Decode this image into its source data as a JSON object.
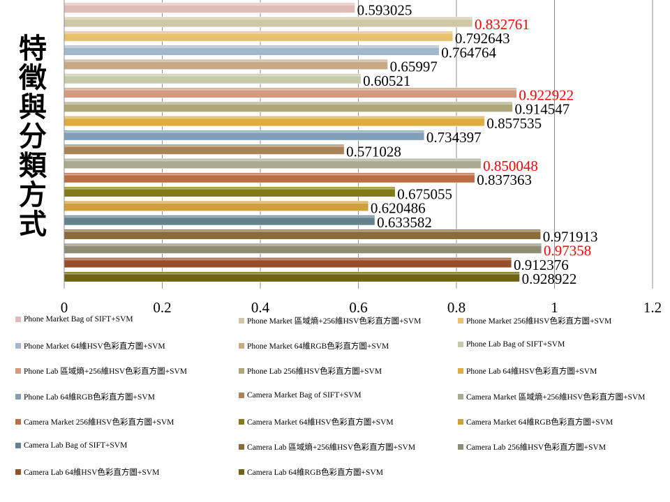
{
  "chart_data": {
    "type": "bar",
    "orientation": "horizontal",
    "ylabel": "特徵與分類方式",
    "xlim": [
      0,
      1.2
    ],
    "x_ticks": [
      "0",
      "0.2",
      "0.4",
      "0.6",
      "0.8",
      "1",
      "1.2"
    ],
    "grid": "vertical",
    "legend_position": "bottom",
    "categories": [
      "Phone Market Bag of SIFT+SVM",
      "Phone Market 區域熵+256維HSV色彩直方圖+SVM",
      "Phone Market 256維HSV色彩直方圖+SVM",
      "Phone Market  64維HSV色彩直方圖+SVM",
      "Phone Market 64維RGB色彩直方圖+SVM",
      "Phone Lab Bag of SIFT+SVM",
      "Phone Lab 區域熵+256維HSV色彩直方圖+SVM",
      "Phone Lab 256維HSV色彩直方圖+SVM",
      "Phone Lab  64維HSV色彩直方圖+SVM",
      "Phone Lab 64維RGB色彩直方圖+SVM",
      "Camera Market Bag of SIFT+SVM",
      "Camera Market 區域熵+256維HSV色彩直方圖+SVM",
      "Camera Market 256維HSV色彩直方圖+SVM",
      "Camera Market  64維HSV色彩直方圖+SVM",
      "Camera Market 64維RGB色彩直方圖+SVM",
      "Camera Lab Bag of SIFT+SVM",
      "Camera Lab 區域熵+256維HSV色彩直方圖+SVM",
      "Camera Lab 256維HSV色彩直方圖+SVM",
      "Camera Lab  64維HSV色彩直方圖+SVM",
      "Camera Lab 64維RGB色彩直方圖+SVM"
    ],
    "values": [
      0.593025,
      0.832761,
      0.792643,
      0.764764,
      0.65997,
      0.60521,
      0.922922,
      0.914547,
      0.857535,
      0.734397,
      0.571028,
      0.850048,
      0.837363,
      0.675055,
      0.620486,
      0.633582,
      0.971913,
      0.97358,
      0.912376,
      0.928922
    ],
    "data_labels": [
      "0.593025",
      "0.832761",
      "0.792643",
      "0.764764",
      "0.65997",
      "0.60521",
      "0.922922",
      "0.914547",
      "0.857535",
      "0.734397",
      "0.571028",
      "0.850048",
      "0.837363",
      "0.675055",
      "0.620486",
      "0.633582",
      "0.971913",
      "0.97358",
      "0.912376",
      "0.928922"
    ],
    "highlighted": [
      false,
      true,
      false,
      false,
      false,
      false,
      true,
      false,
      false,
      false,
      false,
      true,
      false,
      false,
      false,
      false,
      false,
      true,
      false,
      false
    ],
    "highlight_color": "#ff0000",
    "colors": [
      "#dfbcb6",
      "#cfc7a8",
      "#e6c06c",
      "#a1b8cc",
      "#c7a985",
      "#c5cba8",
      "#d39a82",
      "#ada77a",
      "#dfac3f",
      "#7fa0b6",
      "#a88458",
      "#a9ab8e",
      "#bb6d44",
      "#827a14",
      "#cf9f39",
      "#64818f",
      "#8b6a3c",
      "#8e8c74",
      "#974e2b",
      "#6f6315"
    ]
  }
}
